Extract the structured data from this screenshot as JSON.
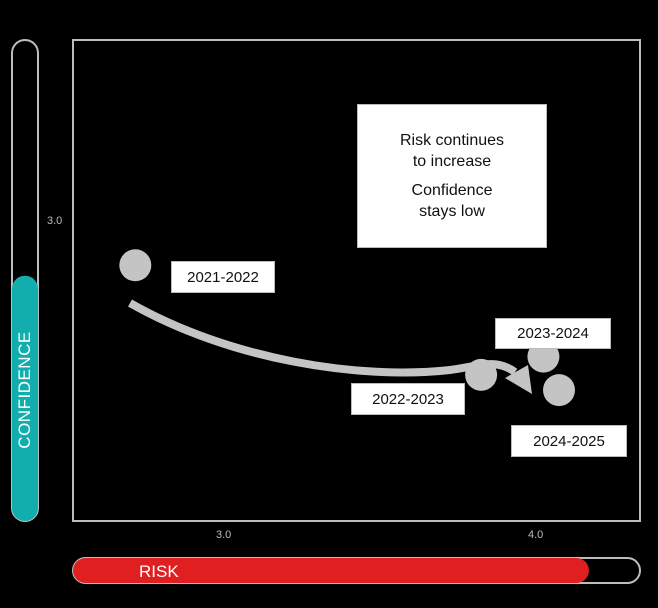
{
  "chart_data": {
    "type": "scatter",
    "xlabel": "RISK",
    "ylabel": "CONFIDENCE",
    "x_ticks": [
      "3.0",
      "4.0"
    ],
    "y_ticks": [
      "3.0"
    ],
    "xlim": [
      2.53,
      4.35
    ],
    "ylim": [
      1.99,
      3.57
    ],
    "grid": false,
    "points": [
      {
        "label": "2021-2022",
        "x": 2.73,
        "y": 2.83
      },
      {
        "label": "2022-2023",
        "x": 3.84,
        "y": 2.47
      },
      {
        "label": "2023-2024",
        "x": 4.04,
        "y": 2.53
      },
      {
        "label": "2024-2025",
        "x": 4.09,
        "y": 2.42
      }
    ],
    "annotation": {
      "line1": "Risk continues",
      "line2": "to increase",
      "line3": "Confidence",
      "line4": "stays low"
    },
    "confidence_level": 0.51,
    "risk_level": 0.91,
    "colors": {
      "confidence": "#12aeae",
      "risk": "#e02020",
      "points": "#c4c4c4",
      "frame": "#bdbdbd",
      "background": "#000000"
    }
  }
}
